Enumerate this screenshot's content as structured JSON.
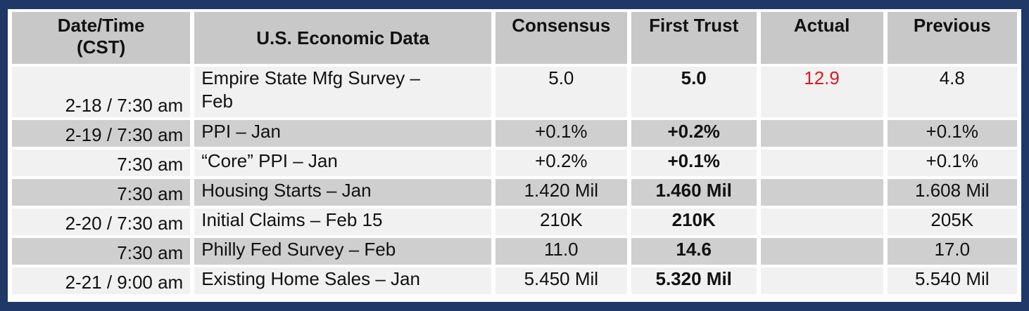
{
  "header": {
    "datetime": "Date/Time\n(CST)",
    "data": "U.S. Economic Data",
    "consensus": "Consensus",
    "first_trust": "First Trust",
    "actual": "Actual",
    "previous": "Previous"
  },
  "rows": [
    {
      "date": "2-18 / 7:30 am",
      "desc": "Empire State Mfg Survey –\nFeb",
      "consensus": "5.0",
      "first_trust": "5.0",
      "actual": "12.9",
      "previous": "4.8"
    },
    {
      "date": "2-19 / 7:30 am",
      "desc": "PPI – Jan",
      "consensus": "+0.1%",
      "first_trust": "+0.2%",
      "actual": "",
      "previous": "+0.1%"
    },
    {
      "date": "7:30 am",
      "desc": "“Core” PPI – Jan",
      "consensus": "+0.2%",
      "first_trust": "+0.1%",
      "actual": "",
      "previous": "+0.1%"
    },
    {
      "date": "7:30 am",
      "desc": "Housing Starts – Jan",
      "consensus": "1.420 Mil",
      "first_trust": "1.460 Mil",
      "actual": "",
      "previous": "1.608 Mil"
    },
    {
      "date": "2-20 / 7:30 am",
      "desc": "Initial Claims – Feb 15",
      "consensus": "210K",
      "first_trust": "210K",
      "actual": "",
      "previous": "205K"
    },
    {
      "date": "7:30 am",
      "desc": "Philly Fed Survey – Feb",
      "consensus": "11.0",
      "first_trust": "14.6",
      "actual": "",
      "previous": "17.0"
    },
    {
      "date": "2-21 / 9:00 am",
      "desc": "Existing Home Sales – Jan",
      "consensus": "5.450 Mil",
      "first_trust": "5.320 Mil",
      "actual": "",
      "previous": "5.540 Mil"
    }
  ],
  "colors": {
    "frame": "#1f3868",
    "header_bg": "#c8c8c8",
    "shaded_row": "#cfcfcf",
    "light_row": "#f1f1f1",
    "actual_text": "#e0181e"
  }
}
